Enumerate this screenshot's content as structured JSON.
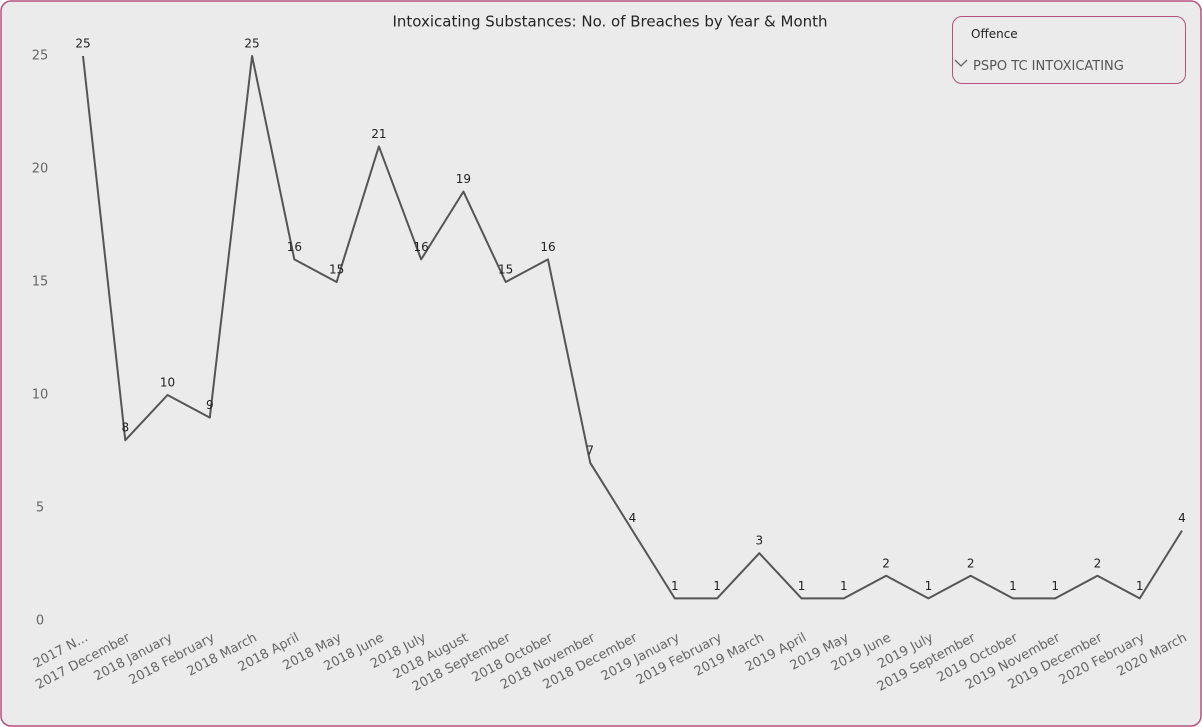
{
  "chart_data": {
    "type": "line",
    "title": "Intoxicating Substances: No. of Breaches by Year & Month",
    "categories": [
      "2017 N...",
      "2017 December",
      "2018 January",
      "2018 February",
      "2018 March",
      "2018 April",
      "2018 May",
      "2018 June",
      "2018 July",
      "2018 August",
      "2018 September",
      "2018 October",
      "2018 November",
      "2018 December",
      "2019 January",
      "2019 February",
      "2019 March",
      "2019 April",
      "2019 May",
      "2019 June",
      "2019 July",
      "2019 September",
      "2019 October",
      "2019 November",
      "2019 December",
      "2020 February",
      "2020 March"
    ],
    "values": [
      25,
      8,
      10,
      9,
      25,
      16,
      15,
      21,
      16,
      19,
      15,
      16,
      7,
      4,
      1,
      1,
      3,
      1,
      1,
      2,
      1,
      2,
      1,
      1,
      2,
      1,
      4
    ],
    "color": "#555555",
    "ylim": [
      0,
      25
    ],
    "yticks": [
      0,
      5,
      10,
      15,
      20,
      25
    ],
    "grid": false
  },
  "slicer": {
    "label": "Offence",
    "value": "PSPO TC INTOXICATING"
  }
}
